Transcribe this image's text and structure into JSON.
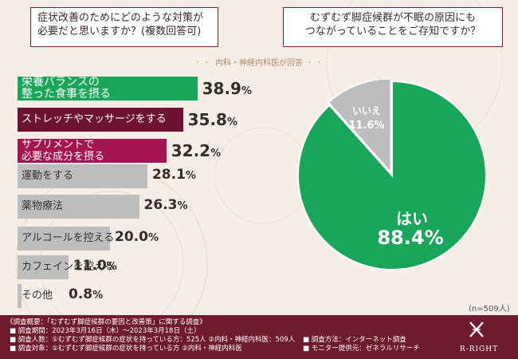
{
  "left_question": "症状改善のためにどのような対策が\n必要だと思いますか？(複数回答可)",
  "right_question": "むずむず脚症候群が不眠の原因にも\nつながっていることをご存知ですか？",
  "respondent_note": "内科・神経内科医が回答",
  "sample_size": "(n=509人)",
  "colors": {
    "green": "#1aa65a",
    "maroon": "#6d1230",
    "magenta": "#a4154f",
    "gray": "#bdbdbd",
    "footer": "#6f1a2d"
  },
  "chart_data": [
    {
      "type": "bar",
      "orientation": "horizontal",
      "unit": "%",
      "xlim": [
        0,
        40
      ],
      "categories": [
        "栄養バランスの\n整った食事を摂る",
        "ストレッチやマッサージをする",
        "サプリメントで\n必要な成分を摂る",
        "運動をする",
        "薬物療法",
        "アルコールを控える",
        "カフェインを控える",
        "その他"
      ],
      "values": [
        38.9,
        35.8,
        32.2,
        28.1,
        26.3,
        20.0,
        11.0,
        0.8
      ],
      "value_labels": [
        "38.9",
        "35.8",
        "32.2",
        "28.1",
        "26.3",
        "20.0",
        "11.0",
        "0.8"
      ],
      "bar_colors": [
        "#1aa65a",
        "#6d1230",
        "#a4154f",
        "#bdbdbd",
        "#bdbdbd",
        "#bdbdbd",
        "#bdbdbd",
        "#bdbdbd"
      ]
    },
    {
      "type": "pie",
      "unit": "%",
      "slices": [
        {
          "label": "はい",
          "value": 88.4,
          "value_label": "88.4",
          "color": "#1aa65a"
        },
        {
          "label": "いいえ",
          "value": 11.6,
          "value_label": "11.6",
          "color": "#bdbdbd"
        }
      ]
    }
  ],
  "footer": {
    "title": "《調査概要：「むずむず脚症候群の要因と改善策」に関する調査》",
    "period": "■ 調査期間：2023年3月16日（木）〜2023年3月18日（土）",
    "count": "■ 調査人数：①むずむず脚症候群の症状を持っている方：525人 ②内科・神経内科医：509人",
    "target": "■ 調査対象：①むずむず脚症候群の症状を持っている方 ②内科・神経内科医",
    "method": "■ 調査方法：インターネット調査",
    "provider": "■ モニター提供元：ゼネラルリサーチ",
    "brand": "R-RIGHT"
  }
}
